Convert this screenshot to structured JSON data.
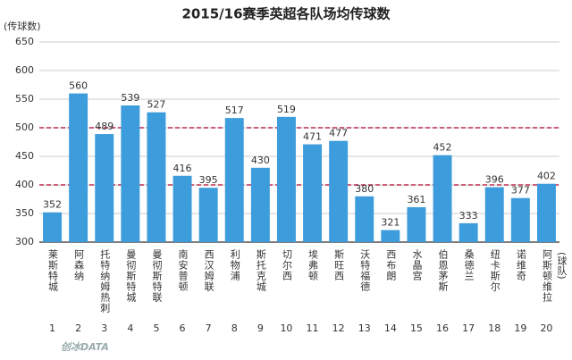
{
  "chart_data": {
    "type": "bar",
    "title": "2015/16赛季英超各队场均传球数",
    "y_label": "(传球数)",
    "x_label": "(球队)",
    "categories": [
      "莱斯特城",
      "阿森纳",
      "托特纳姆热刺",
      "曼彻斯特城",
      "曼彻斯特联",
      "南安普顿",
      "西汉姆联",
      "利物浦",
      "斯托克城",
      "切尔西",
      "埃弗顿",
      "斯旺西",
      "沃特福德",
      "西布朗",
      "水晶宫",
      "伯恩茅斯",
      "桑德兰",
      "纽卡斯尔",
      "诺维奇",
      "阿斯顿维拉"
    ],
    "ranks": [
      1,
      2,
      3,
      4,
      5,
      6,
      7,
      8,
      9,
      10,
      11,
      12,
      13,
      14,
      15,
      16,
      17,
      18,
      19,
      20
    ],
    "values": [
      352,
      560,
      489,
      539,
      527,
      416,
      395,
      517,
      430,
      519,
      471,
      477,
      380,
      321,
      361,
      452,
      333,
      396,
      377,
      402
    ],
    "color": "#3d9cdb",
    "ylim": [
      300,
      650
    ],
    "yticks": [
      300,
      350,
      400,
      450,
      500,
      550,
      600,
      650
    ],
    "grid": true,
    "reference_lines": [
      400,
      500
    ],
    "reference_color": "#b0002a",
    "watermark": "创冰DATA"
  }
}
